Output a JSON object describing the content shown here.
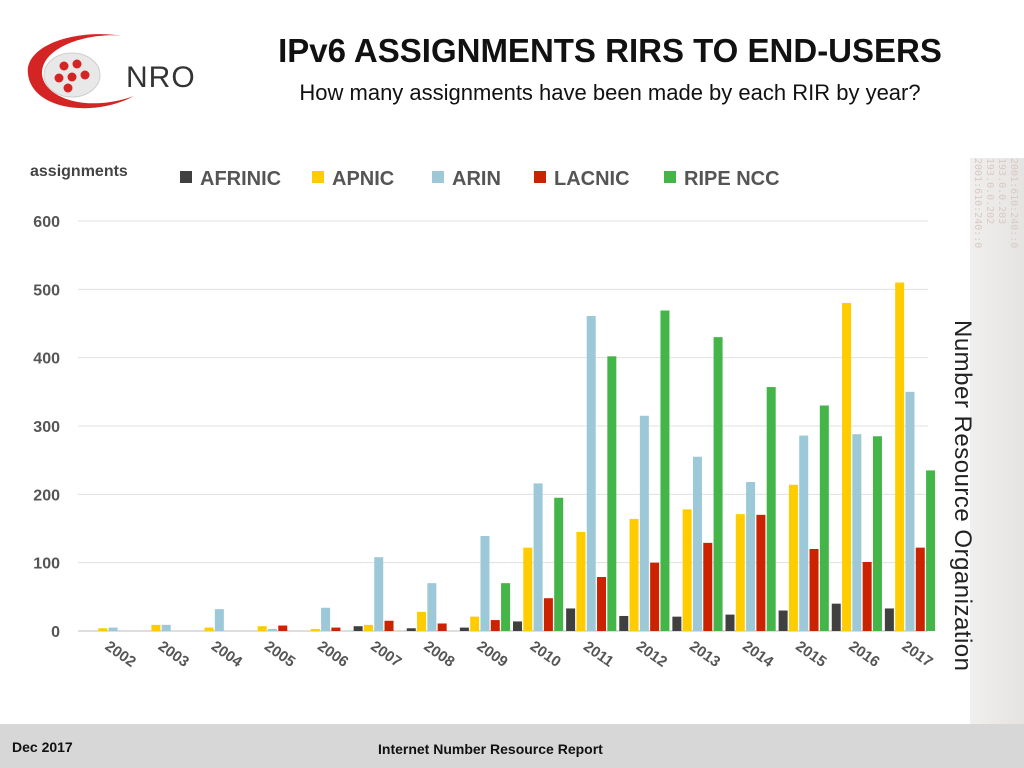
{
  "header": {
    "logo_text": "NRO",
    "title": "IPv6 ASSIGNMENTS RIRS TO END-USERS",
    "subtitle": "How many assignments have been made by each RIR by year?"
  },
  "side": {
    "org_label": "Number Resource Organization",
    "background_numbers": [
      "2001:610:240::0",
      "193.0.0.202",
      "193.0.0.203",
      "2001:610:240::0",
      "193.0.0.202"
    ]
  },
  "footer": {
    "date": "Dec 2017",
    "report": "Internet Number Resource Report"
  },
  "colors": {
    "AFRINIC": "#404040",
    "APNIC": "#ffcc00",
    "ARIN": "#9dc8d8",
    "LACNIC": "#cc2200",
    "RIPE NCC": "#44b548",
    "logo_red": "#d42424"
  },
  "chart_data": {
    "type": "bar",
    "ylabel": "assignments",
    "xlabel": "",
    "ylim": [
      0,
      600
    ],
    "yticks": [
      0,
      100,
      200,
      300,
      400,
      500,
      600
    ],
    "grid": true,
    "legend_position": "top",
    "categories": [
      "2002",
      "2003",
      "2004",
      "2005",
      "2006",
      "2007",
      "2008",
      "2009",
      "2010",
      "2011",
      "2012",
      "2013",
      "2014",
      "2015",
      "2016",
      "2017"
    ],
    "series": [
      {
        "name": "AFRINIC",
        "values": [
          0,
          0,
          0,
          0,
          0,
          7,
          4,
          5,
          14,
          33,
          22,
          21,
          24,
          30,
          40,
          33
        ]
      },
      {
        "name": "APNIC",
        "values": [
          4,
          9,
          5,
          7,
          3,
          9,
          28,
          21,
          122,
          145,
          164,
          178,
          171,
          214,
          480,
          510
        ]
      },
      {
        "name": "ARIN",
        "values": [
          5,
          9,
          32,
          3,
          34,
          108,
          70,
          139,
          216,
          461,
          315,
          255,
          218,
          286,
          288,
          350
        ]
      },
      {
        "name": "LACNIC",
        "values": [
          0,
          0,
          0,
          8,
          5,
          15,
          11,
          16,
          48,
          79,
          100,
          129,
          170,
          120,
          101,
          122
        ]
      },
      {
        "name": "RIPE NCC",
        "values": [
          0,
          0,
          0,
          0,
          0,
          0,
          0,
          70,
          195,
          402,
          469,
          430,
          357,
          330,
          285,
          235
        ]
      }
    ]
  }
}
